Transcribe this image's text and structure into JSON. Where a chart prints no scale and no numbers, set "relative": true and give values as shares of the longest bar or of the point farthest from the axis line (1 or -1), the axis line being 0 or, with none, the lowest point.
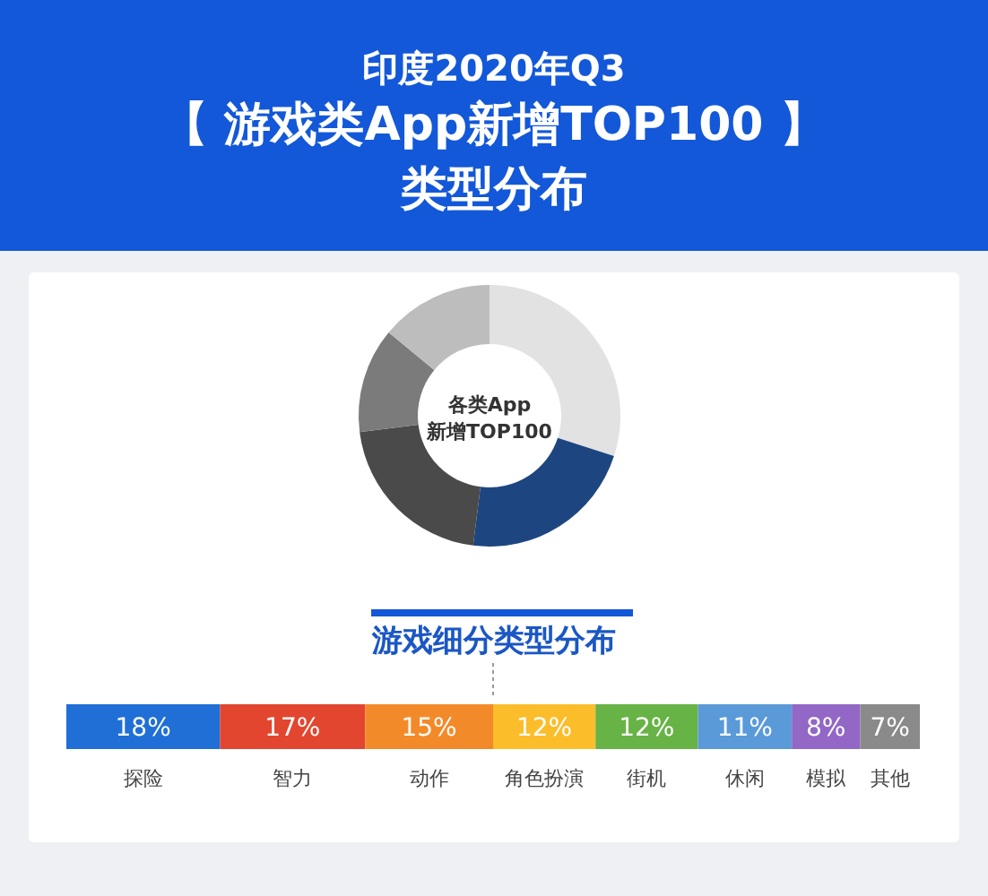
{
  "chart_data": [
    {
      "type": "donut",
      "subtitle": "印度2020年Q3",
      "title": "【 游戏类App新增TOP100 】类型分布",
      "relative": true,
      "categories": [
        null,
        null,
        null,
        null,
        null
      ],
      "values": [
        30,
        22,
        21,
        13,
        14
      ],
      "colors": [
        "#e2e2e2",
        "#1d4680",
        "#4a4a4a",
        "#7b7b7b",
        "#bdbdbd"
      ],
      "annotations": [
        "各类App\n新增TOP100"
      ]
    },
    {
      "type": "bar",
      "title": "游戏细分类型分布",
      "orientation": "horizontal",
      "stacked": true,
      "categories": [
        null
      ],
      "xlim": [
        0,
        100
      ],
      "tick_labels": false,
      "series": [
        {
          "name": "探险",
          "color": "#1f6fd6",
          "values": [
            18
          ],
          "value_labels": [
            "18%"
          ]
        },
        {
          "name": "智力",
          "color": "#e2462f",
          "values": [
            17
          ],
          "value_labels": [
            "17%"
          ]
        },
        {
          "name": "动作",
          "color": "#f38a2a",
          "values": [
            15
          ],
          "value_labels": [
            "15%"
          ]
        },
        {
          "name": "角色扮演",
          "color": "#fbbd2a",
          "values": [
            12
          ],
          "value_labels": [
            "12%"
          ]
        },
        {
          "name": "街机",
          "color": "#67b346",
          "values": [
            12
          ],
          "value_labels": [
            "12%"
          ]
        },
        {
          "name": "休闲",
          "color": "#5a9ad8",
          "values": [
            11
          ],
          "value_labels": [
            "11%"
          ]
        },
        {
          "name": "模拟",
          "color": "#9267c6",
          "values": [
            8
          ],
          "value_labels": [
            "8%"
          ]
        },
        {
          "name": "其他",
          "color": "#8a8a8a",
          "values": [
            7
          ],
          "value_labels": [
            "7%"
          ]
        }
      ]
    }
  ]
}
